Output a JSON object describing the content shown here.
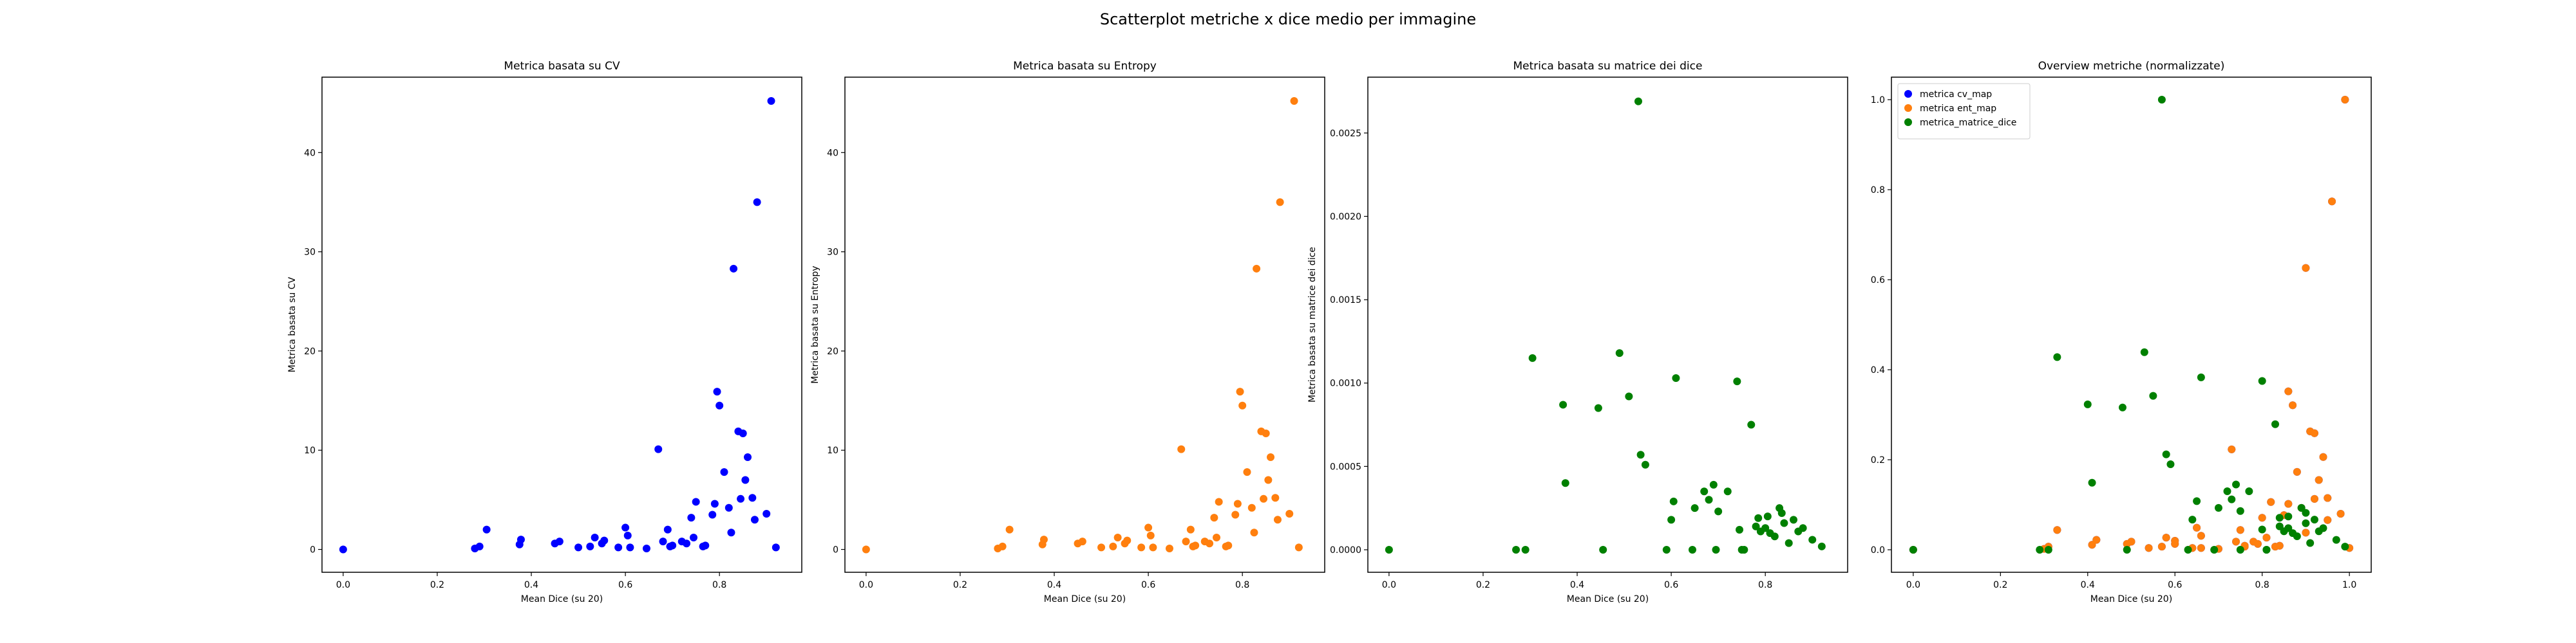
{
  "figure_title": "Scatterplot metriche x dice medio per immagine",
  "colors": {
    "cv": "#0000ff",
    "entropy": "#ff7f0e",
    "dice": "#008000",
    "axes": "#000000",
    "background": "#ffffff"
  },
  "chart_data": [
    {
      "type": "scatter",
      "title": "Metrica basata su CV",
      "xlabel": "Mean Dice (su 20)",
      "ylabel": "Metrica basata su CV",
      "xlim": [
        -0.045,
        0.975
      ],
      "ylim": [
        -2.3,
        47.6
      ],
      "xticks": [
        0.0,
        0.2,
        0.4,
        0.6,
        0.8
      ],
      "xtick_labels": [
        "0.0",
        "0.2",
        "0.4",
        "0.6",
        "0.8"
      ],
      "yticks": [
        0,
        10,
        20,
        30,
        40
      ],
      "ytick_labels": [
        "0",
        "10",
        "20",
        "30",
        "40"
      ],
      "grid": false,
      "series": [
        {
          "color": "#0000ff",
          "x": [
            0.0,
            0.28,
            0.29,
            0.305,
            0.375,
            0.378,
            0.45,
            0.46,
            0.5,
            0.525,
            0.535,
            0.55,
            0.555,
            0.585,
            0.6,
            0.605,
            0.61,
            0.645,
            0.67,
            0.68,
            0.69,
            0.695,
            0.7,
            0.72,
            0.73,
            0.74,
            0.745,
            0.75,
            0.765,
            0.77,
            0.785,
            0.79,
            0.795,
            0.8,
            0.81,
            0.82,
            0.825,
            0.83,
            0.84,
            0.845,
            0.85,
            0.855,
            0.86,
            0.87,
            0.875,
            0.88,
            0.9,
            0.91,
            0.92
          ],
          "y": [
            0.0,
            0.1,
            0.3,
            2.0,
            0.5,
            1.0,
            0.6,
            0.8,
            0.2,
            0.3,
            1.2,
            0.6,
            0.9,
            0.2,
            2.2,
            1.4,
            0.2,
            0.1,
            10.1,
            0.8,
            2.0,
            0.3,
            0.4,
            0.8,
            0.6,
            3.2,
            1.2,
            4.8,
            0.3,
            0.4,
            3.5,
            4.6,
            15.9,
            14.5,
            7.8,
            4.2,
            1.7,
            28.3,
            11.9,
            5.1,
            11.7,
            7.0,
            9.3,
            5.2,
            3.0,
            35.0,
            3.6,
            45.2,
            0.2
          ]
        }
      ]
    },
    {
      "type": "scatter",
      "title": "Metrica basata su Entropy",
      "xlabel": "Mean Dice (su 20)",
      "ylabel": "Metrica basata su Entropy",
      "xlim": [
        -0.045,
        0.975
      ],
      "ylim": [
        -2.3,
        47.6
      ],
      "xticks": [
        0.0,
        0.2,
        0.4,
        0.6,
        0.8
      ],
      "xtick_labels": [
        "0.0",
        "0.2",
        "0.4",
        "0.6",
        "0.8"
      ],
      "yticks": [
        0,
        10,
        20,
        30,
        40
      ],
      "ytick_labels": [
        "0",
        "10",
        "20",
        "30",
        "40"
      ],
      "grid": false,
      "series": [
        {
          "color": "#ff7f0e",
          "x": [
            0.0,
            0.28,
            0.29,
            0.305,
            0.375,
            0.378,
            0.45,
            0.46,
            0.5,
            0.525,
            0.535,
            0.55,
            0.555,
            0.585,
            0.6,
            0.605,
            0.61,
            0.645,
            0.67,
            0.68,
            0.69,
            0.695,
            0.7,
            0.72,
            0.73,
            0.74,
            0.745,
            0.75,
            0.765,
            0.77,
            0.785,
            0.79,
            0.795,
            0.8,
            0.81,
            0.82,
            0.825,
            0.83,
            0.84,
            0.845,
            0.85,
            0.855,
            0.86,
            0.87,
            0.875,
            0.88,
            0.9,
            0.91,
            0.92
          ],
          "y": [
            0.0,
            0.1,
            0.3,
            2.0,
            0.5,
            1.0,
            0.6,
            0.8,
            0.2,
            0.3,
            1.2,
            0.6,
            0.9,
            0.2,
            2.2,
            1.4,
            0.2,
            0.1,
            10.1,
            0.8,
            2.0,
            0.3,
            0.4,
            0.8,
            0.6,
            3.2,
            1.2,
            4.8,
            0.3,
            0.4,
            3.5,
            4.6,
            15.9,
            14.5,
            7.8,
            4.2,
            1.7,
            28.3,
            11.9,
            5.1,
            11.7,
            7.0,
            9.3,
            5.2,
            3.0,
            35.0,
            3.6,
            45.2,
            0.2
          ]
        }
      ]
    },
    {
      "type": "scatter",
      "title": "Metrica basata su matrice dei dice",
      "xlabel": "Mean Dice (su 20)",
      "ylabel": "Metrica basata su matrice dei dice",
      "xlim": [
        -0.045,
        0.975
      ],
      "ylim": [
        -0.000135,
        0.002835
      ],
      "xticks": [
        0.0,
        0.2,
        0.4,
        0.6,
        0.8
      ],
      "xtick_labels": [
        "0.0",
        "0.2",
        "0.4",
        "0.6",
        "0.8"
      ],
      "yticks": [
        0.0,
        0.0005,
        0.001,
        0.0015,
        0.002,
        0.0025
      ],
      "ytick_labels": [
        "0.0000",
        "0.0005",
        "0.0010",
        "0.0015",
        "0.0020",
        "0.0025"
      ],
      "grid": false,
      "series": [
        {
          "color": "#008000",
          "x": [
            0.0,
            0.27,
            0.29,
            0.305,
            0.37,
            0.375,
            0.445,
            0.455,
            0.49,
            0.51,
            0.53,
            0.535,
            0.545,
            0.59,
            0.6,
            0.605,
            0.61,
            0.645,
            0.65,
            0.67,
            0.68,
            0.69,
            0.695,
            0.7,
            0.72,
            0.74,
            0.745,
            0.75,
            0.755,
            0.77,
            0.78,
            0.785,
            0.79,
            0.8,
            0.805,
            0.81,
            0.82,
            0.83,
            0.835,
            0.84,
            0.85,
            0.86,
            0.87,
            0.88,
            0.9,
            0.92
          ],
          "y": [
            0.0,
            0.0,
            0.0,
            0.00115,
            0.00087,
            0.0004,
            0.00085,
            0.0,
            0.00118,
            0.00092,
            0.00269,
            0.00057,
            0.00051,
            0.0,
            0.00018,
            0.00029,
            0.00103,
            0.0,
            0.00025,
            0.00035,
            0.0003,
            0.00039,
            0.0,
            0.00023,
            0.00035,
            0.00101,
            0.00012,
            0.0,
            0.0,
            0.00075,
            0.00014,
            0.00019,
            0.00011,
            0.00013,
            0.0002,
            0.0001,
            8e-05,
            0.00025,
            0.00022,
            0.00016,
            4e-05,
            0.00018,
            0.00011,
            0.00013,
            6e-05,
            2e-05
          ]
        }
      ]
    },
    {
      "type": "scatter",
      "title": "Overview metriche (normalizzate)",
      "xlabel": "Mean Dice (su 20)",
      "ylabel": "",
      "xlim": [
        -0.05,
        1.05
      ],
      "ylim": [
        -0.05,
        1.05
      ],
      "xticks": [
        0.0,
        0.2,
        0.4,
        0.6,
        0.8,
        1.0
      ],
      "xtick_labels": [
        "0.0",
        "0.2",
        "0.4",
        "0.6",
        "0.8",
        "1.0"
      ],
      "yticks": [
        0.0,
        0.2,
        0.4,
        0.6,
        0.8,
        1.0
      ],
      "ytick_labels": [
        "0.0",
        "0.2",
        "0.4",
        "0.6",
        "0.8",
        "1.0"
      ],
      "grid": false,
      "legend": "top-left",
      "series": [
        {
          "name": "metrica cv_map",
          "color": "#0000ff",
          "x": [
            0.0,
            0.3,
            0.31,
            0.33,
            0.41,
            0.42,
            0.49,
            0.5,
            0.54,
            0.57,
            0.58,
            0.6,
            0.6,
            0.64,
            0.65,
            0.66,
            0.66,
            0.7,
            0.73,
            0.74,
            0.75,
            0.76,
            0.76,
            0.78,
            0.79,
            0.8,
            0.81,
            0.82,
            0.83,
            0.84,
            0.85,
            0.86,
            0.86,
            0.87,
            0.88,
            0.89,
            0.9,
            0.9,
            0.91,
            0.92,
            0.92,
            0.93,
            0.94,
            0.95,
            0.95,
            0.96,
            0.98,
            0.99,
            1.0
          ],
          "y": [
            0.0,
            0.002,
            0.007,
            0.044,
            0.011,
            0.022,
            0.013,
            0.018,
            0.004,
            0.007,
            0.027,
            0.013,
            0.02,
            0.004,
            0.049,
            0.031,
            0.004,
            0.002,
            0.223,
            0.018,
            0.044,
            0.007,
            0.009,
            0.018,
            0.013,
            0.071,
            0.027,
            0.106,
            0.007,
            0.009,
            0.077,
            0.102,
            0.352,
            0.321,
            0.173,
            0.093,
            0.038,
            0.626,
            0.263,
            0.113,
            0.259,
            0.155,
            0.206,
            0.115,
            0.066,
            0.774,
            0.08,
            1.0,
            0.004
          ]
        },
        {
          "name": "metrica ent_map",
          "color": "#ff7f0e",
          "x": [
            0.0,
            0.3,
            0.31,
            0.33,
            0.41,
            0.42,
            0.49,
            0.5,
            0.54,
            0.57,
            0.58,
            0.6,
            0.6,
            0.64,
            0.65,
            0.66,
            0.66,
            0.7,
            0.73,
            0.74,
            0.75,
            0.76,
            0.76,
            0.78,
            0.79,
            0.8,
            0.81,
            0.82,
            0.83,
            0.84,
            0.85,
            0.86,
            0.86,
            0.87,
            0.88,
            0.89,
            0.9,
            0.9,
            0.91,
            0.92,
            0.92,
            0.93,
            0.94,
            0.95,
            0.95,
            0.96,
            0.98,
            0.99,
            1.0
          ],
          "y": [
            0.0,
            0.002,
            0.007,
            0.044,
            0.011,
            0.022,
            0.013,
            0.018,
            0.004,
            0.007,
            0.027,
            0.013,
            0.02,
            0.004,
            0.049,
            0.031,
            0.004,
            0.002,
            0.223,
            0.018,
            0.044,
            0.007,
            0.009,
            0.018,
            0.013,
            0.071,
            0.027,
            0.106,
            0.007,
            0.009,
            0.077,
            0.102,
            0.352,
            0.321,
            0.173,
            0.093,
            0.038,
            0.626,
            0.263,
            0.113,
            0.259,
            0.155,
            0.206,
            0.115,
            0.066,
            0.774,
            0.08,
            1.0,
            0.004
          ]
        },
        {
          "name": "metrica_matrice_dice",
          "color": "#008000",
          "x": [
            0.0,
            0.29,
            0.31,
            0.33,
            0.4,
            0.41,
            0.48,
            0.49,
            0.53,
            0.55,
            0.57,
            0.58,
            0.59,
            0.63,
            0.64,
            0.65,
            0.66,
            0.69,
            0.7,
            0.72,
            0.73,
            0.74,
            0.75,
            0.75,
            0.77,
            0.8,
            0.8,
            0.81,
            0.81,
            0.83,
            0.84,
            0.84,
            0.85,
            0.86,
            0.86,
            0.87,
            0.88,
            0.89,
            0.9,
            0.9,
            0.91,
            0.92,
            0.93,
            0.94,
            0.97,
            0.99
          ],
          "y": [
            0.0,
            0.0,
            0.0,
            0.428,
            0.323,
            0.149,
            0.316,
            0.0,
            0.439,
            0.342,
            1.0,
            0.212,
            0.19,
            0.0,
            0.067,
            0.108,
            0.383,
            0.0,
            0.093,
            0.13,
            0.112,
            0.145,
            0.0,
            0.086,
            0.13,
            0.375,
            0.045,
            0.0,
            0.0,
            0.279,
            0.052,
            0.071,
            0.041,
            0.048,
            0.074,
            0.037,
            0.03,
            0.093,
            0.082,
            0.059,
            0.015,
            0.067,
            0.041,
            0.048,
            0.022,
            0.007
          ]
        }
      ]
    }
  ]
}
